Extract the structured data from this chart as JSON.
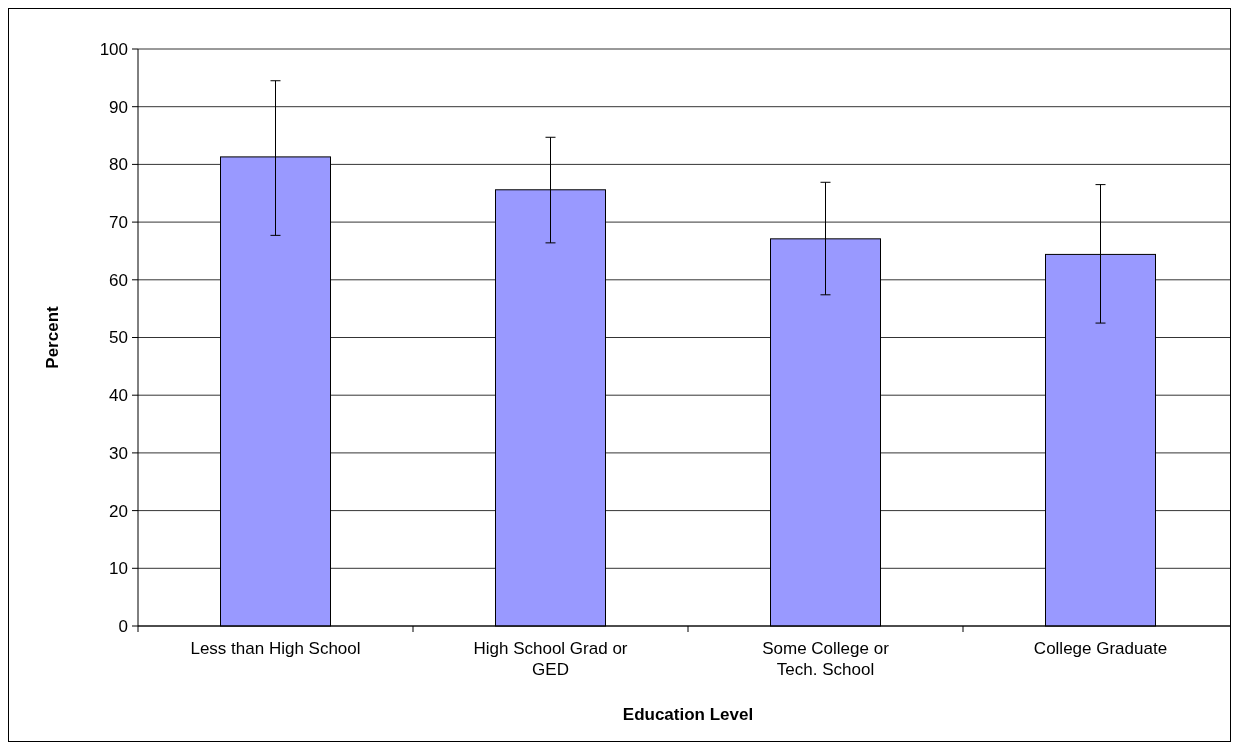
{
  "chart_data": {
    "type": "bar",
    "xlabel": "Education Level",
    "ylabel": "Percent",
    "categories": [
      "Less than High School",
      "High School Grad or GED",
      "Some College or Tech. School",
      "College Graduate"
    ],
    "values": [
      81.3,
      75.6,
      67.1,
      64.4
    ],
    "color": "#9999ff",
    "errors": [
      [
        67.7,
        94.5
      ],
      [
        66.4,
        84.7
      ],
      [
        57.4,
        76.9
      ],
      [
        52.5,
        76.5
      ]
    ],
    "ylim": [
      0,
      100
    ],
    "yticks": [
      0,
      10,
      20,
      30,
      40,
      50,
      60,
      70,
      80,
      90,
      100
    ],
    "grid": "y"
  }
}
